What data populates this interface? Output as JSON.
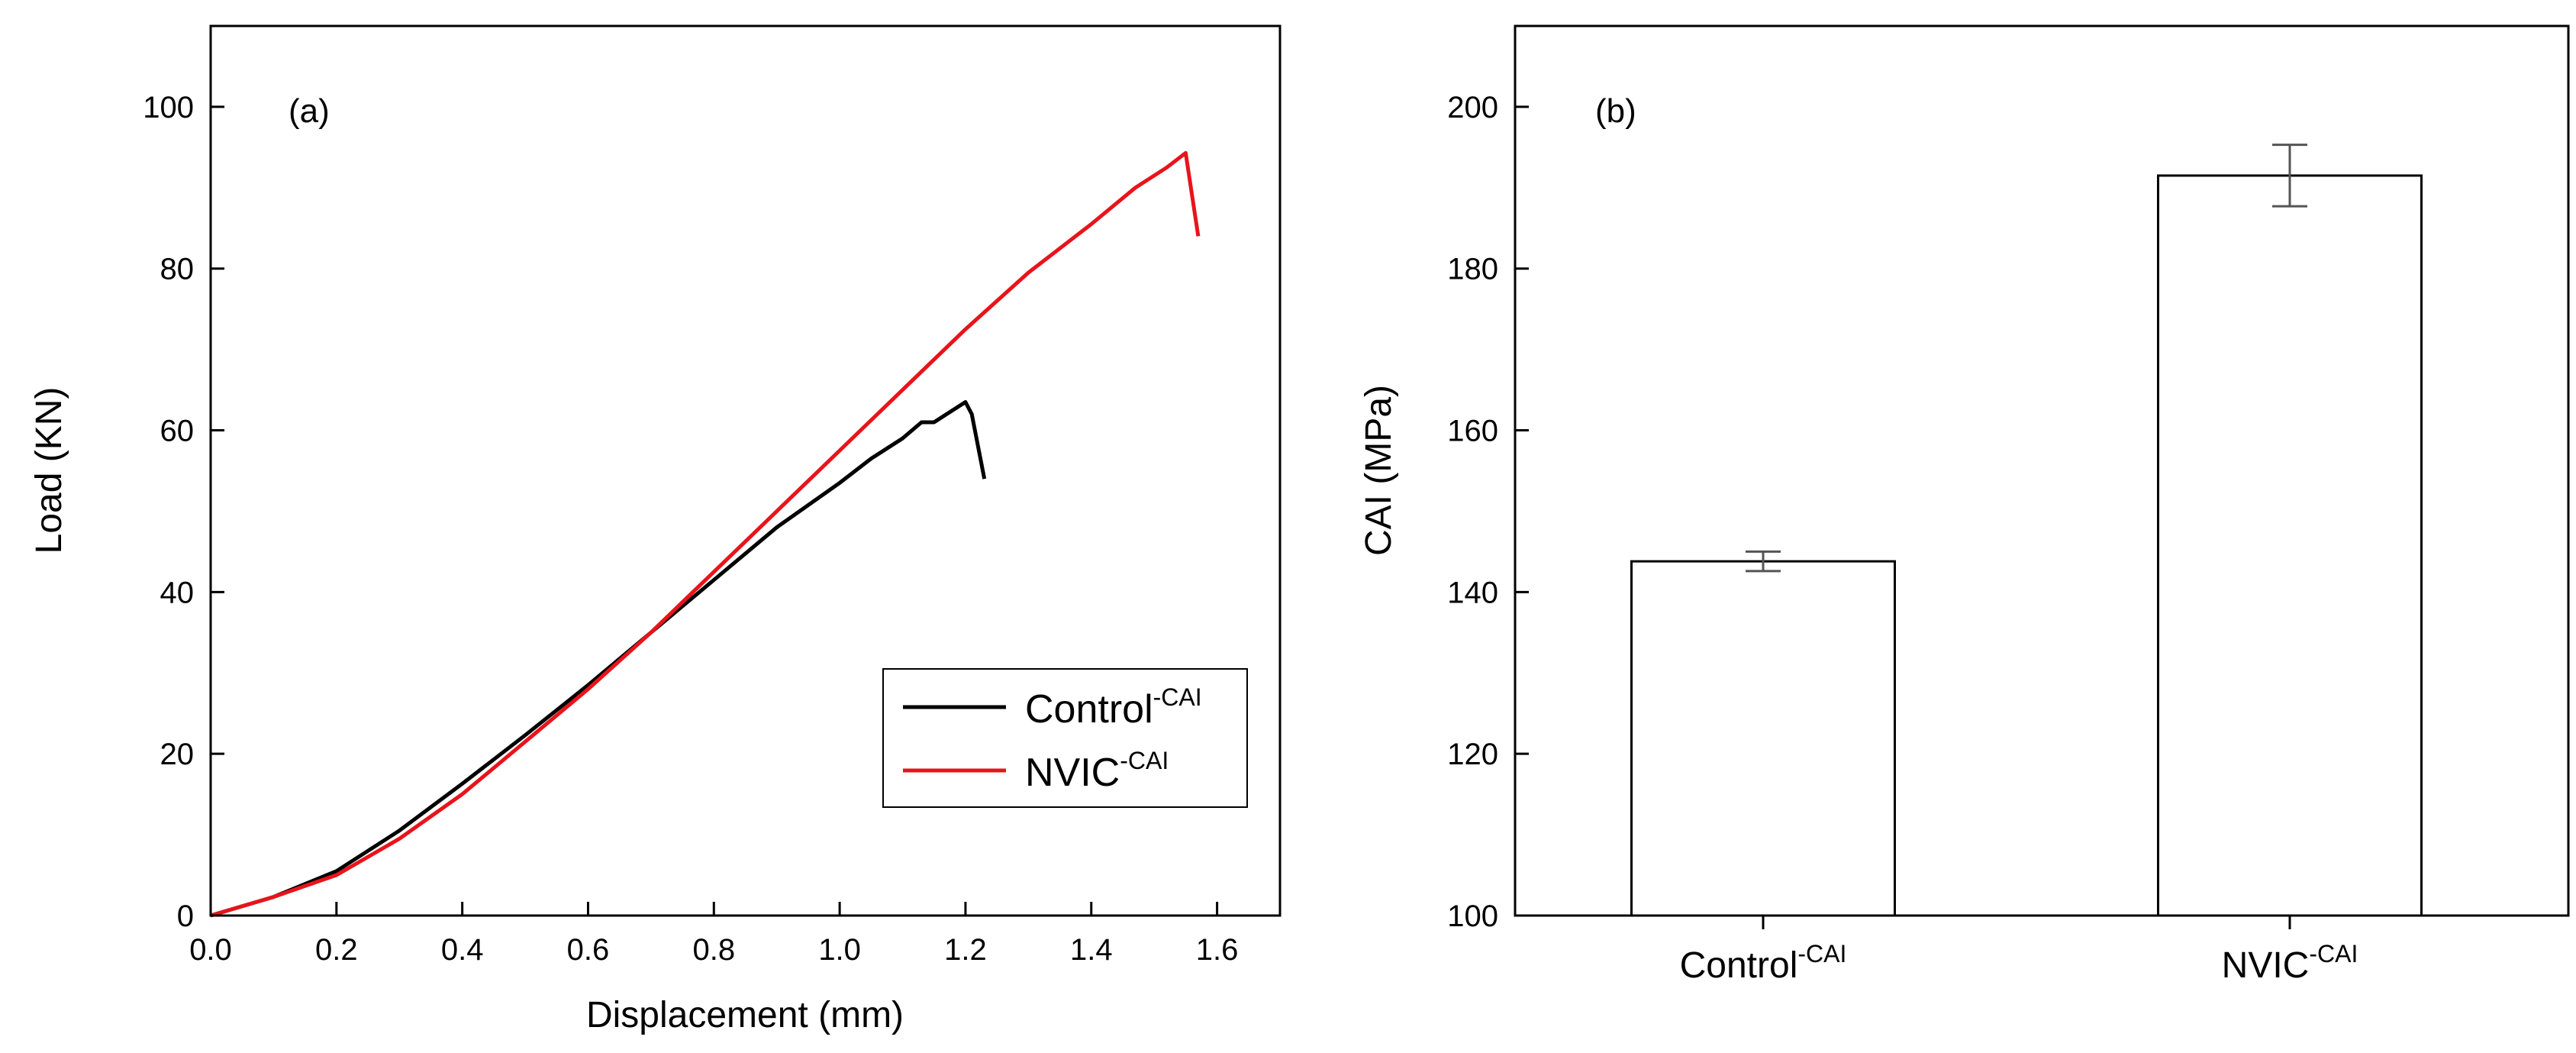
{
  "chart_data": [
    {
      "type": "line",
      "panel_label": "(a)",
      "title": "",
      "xlabel": "Displacement (mm)",
      "ylabel": "Load (KN)",
      "xlim": [
        0.0,
        1.7
      ],
      "ylim": [
        0,
        110
      ],
      "xticks": [
        "0.0",
        "0.2",
        "0.4",
        "0.6",
        "0.8",
        "1.0",
        "1.2",
        "1.4",
        "1.6"
      ],
      "yticks": [
        "0",
        "20",
        "40",
        "60",
        "80",
        "100"
      ],
      "legend_position": "bottom-right",
      "series": [
        {
          "name": "Control",
          "name_sup": "-CAI",
          "color": "#000000",
          "x": [
            0.0,
            0.1,
            0.2,
            0.3,
            0.4,
            0.5,
            0.6,
            0.7,
            0.8,
            0.9,
            1.0,
            1.05,
            1.1,
            1.13,
            1.15,
            1.2,
            1.21,
            1.23
          ],
          "y": [
            0,
            2.3,
            5.5,
            10.5,
            16.3,
            22.3,
            28.5,
            35,
            41.5,
            48,
            53.5,
            56.5,
            59,
            61,
            61,
            63.5,
            62,
            54
          ]
        },
        {
          "name": "NVIC",
          "name_sup": "-CAI",
          "color": "#e8141b",
          "x": [
            0.0,
            0.1,
            0.2,
            0.3,
            0.4,
            0.5,
            0.6,
            0.7,
            0.8,
            0.9,
            1.0,
            1.1,
            1.2,
            1.3,
            1.4,
            1.47,
            1.52,
            1.55,
            1.57
          ],
          "y": [
            0,
            2.3,
            5.0,
            9.5,
            15,
            21.5,
            28,
            35,
            42.5,
            50,
            57.5,
            65,
            72.5,
            79.5,
            85.5,
            90,
            92.5,
            94.3,
            84
          ]
        }
      ]
    },
    {
      "type": "bar",
      "panel_label": "(b)",
      "title": "",
      "xlabel": "",
      "ylabel": "CAI (MPa)",
      "ylim": [
        100,
        210
      ],
      "yticks": [
        "100",
        "120",
        "140",
        "160",
        "180",
        "200"
      ],
      "categories": [
        "Control",
        "NVIC"
      ],
      "category_sup": [
        "-CAI",
        "-CAI"
      ],
      "values": [
        143.8,
        191.5
      ],
      "errors": [
        1.2,
        3.8
      ]
    }
  ]
}
